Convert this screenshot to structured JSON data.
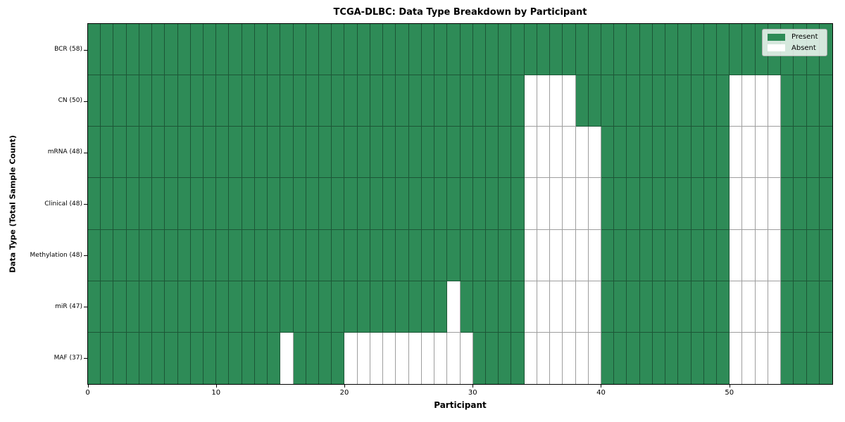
{
  "chart_data": {
    "type": "heatmap",
    "title": "TCGA-DLBC: Data Type Breakdown by Participant",
    "xlabel": "Participant",
    "ylabel": "Data Type (Total Sample Count)",
    "n_participants": 58,
    "x_ticks": [
      0,
      10,
      20,
      30,
      40,
      50
    ],
    "rows": [
      {
        "label": "BCR (58)",
        "present_count": 58,
        "absent_participants": []
      },
      {
        "label": "CN (50)",
        "present_count": 50,
        "absent_participants": [
          34,
          35,
          36,
          37,
          50,
          51,
          52,
          53
        ]
      },
      {
        "label": "mRNA (48)",
        "present_count": 48,
        "absent_participants": [
          34,
          35,
          36,
          37,
          38,
          39,
          50,
          51,
          52,
          53
        ]
      },
      {
        "label": "Clinical (48)",
        "present_count": 48,
        "absent_participants": [
          34,
          35,
          36,
          37,
          38,
          39,
          50,
          51,
          52,
          53
        ]
      },
      {
        "label": "Methylation (48)",
        "present_count": 48,
        "absent_participants": [
          34,
          35,
          36,
          37,
          38,
          39,
          50,
          51,
          52,
          53
        ]
      },
      {
        "label": "miR (47)",
        "present_count": 47,
        "absent_participants": [
          28,
          34,
          35,
          36,
          37,
          38,
          39,
          50,
          51,
          52,
          53
        ]
      },
      {
        "label": "MAF (37)",
        "present_count": 37,
        "absent_participants": [
          15,
          20,
          21,
          22,
          23,
          24,
          25,
          26,
          27,
          28,
          29,
          34,
          35,
          36,
          37,
          38,
          39,
          50,
          51,
          52,
          53
        ]
      }
    ],
    "legend": [
      {
        "label": "Present",
        "color": "#2e8b57"
      },
      {
        "label": "Absent",
        "color": "#ffffff"
      }
    ],
    "colors": {
      "present": "#2e8b57",
      "absent": "#ffffff",
      "grid_line": "rgba(0,0,0,0.38)",
      "axis": "#000000"
    }
  }
}
